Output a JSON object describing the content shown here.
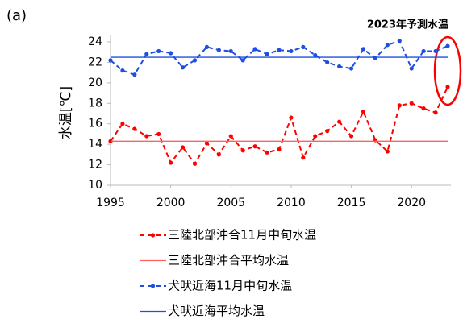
{
  "panel_label": "(a)",
  "chart_data": {
    "type": "line",
    "annotation": "2023年予測水温",
    "y_label": "水温[℃]",
    "x": [
      1995,
      1996,
      1997,
      1998,
      1999,
      2000,
      2001,
      2002,
      2003,
      2004,
      2005,
      2006,
      2007,
      2008,
      2009,
      2010,
      2011,
      2012,
      2013,
      2014,
      2015,
      2016,
      2017,
      2018,
      2019,
      2020,
      2021,
      2022,
      2023
    ],
    "series": [
      {
        "name": "三陸北部沖合11月中旬水温",
        "color": "#ff0000",
        "style": "dashed",
        "values": [
          14.3,
          16.0,
          15.5,
          14.8,
          15.0,
          12.2,
          13.7,
          12.1,
          14.1,
          13.0,
          14.8,
          13.4,
          13.8,
          13.2,
          13.5,
          16.6,
          12.7,
          14.8,
          15.3,
          16.2,
          14.8,
          17.2,
          14.4,
          13.3,
          17.8,
          18.0,
          17.5,
          17.1,
          19.6
        ]
      },
      {
        "name": "三陸北部沖合平均水温",
        "color": "#ff6060",
        "style": "mean",
        "value": 14.3
      },
      {
        "name": "犬吠近海11月中旬水温",
        "color": "#1f4fe0",
        "style": "dashed",
        "values": [
          22.2,
          21.2,
          20.8,
          22.8,
          23.1,
          22.9,
          21.5,
          22.2,
          23.5,
          23.2,
          23.1,
          22.2,
          23.3,
          22.8,
          23.2,
          23.1,
          23.5,
          22.7,
          22.0,
          21.6,
          21.4,
          23.3,
          22.4,
          23.7,
          24.1,
          21.4,
          23.1,
          23.1,
          23.6
        ]
      },
      {
        "name": "犬吠近海平均水温",
        "color": "#1f4fe0",
        "style": "mean",
        "value": 22.5
      }
    ],
    "xlim": [
      1995,
      2023
    ],
    "xticks": [
      1995,
      2000,
      2005,
      2010,
      2015,
      2020
    ],
    "ylim": [
      10,
      24
    ],
    "yticks": [
      10,
      12,
      14,
      16,
      18,
      20,
      22,
      24
    ],
    "grid": false
  }
}
